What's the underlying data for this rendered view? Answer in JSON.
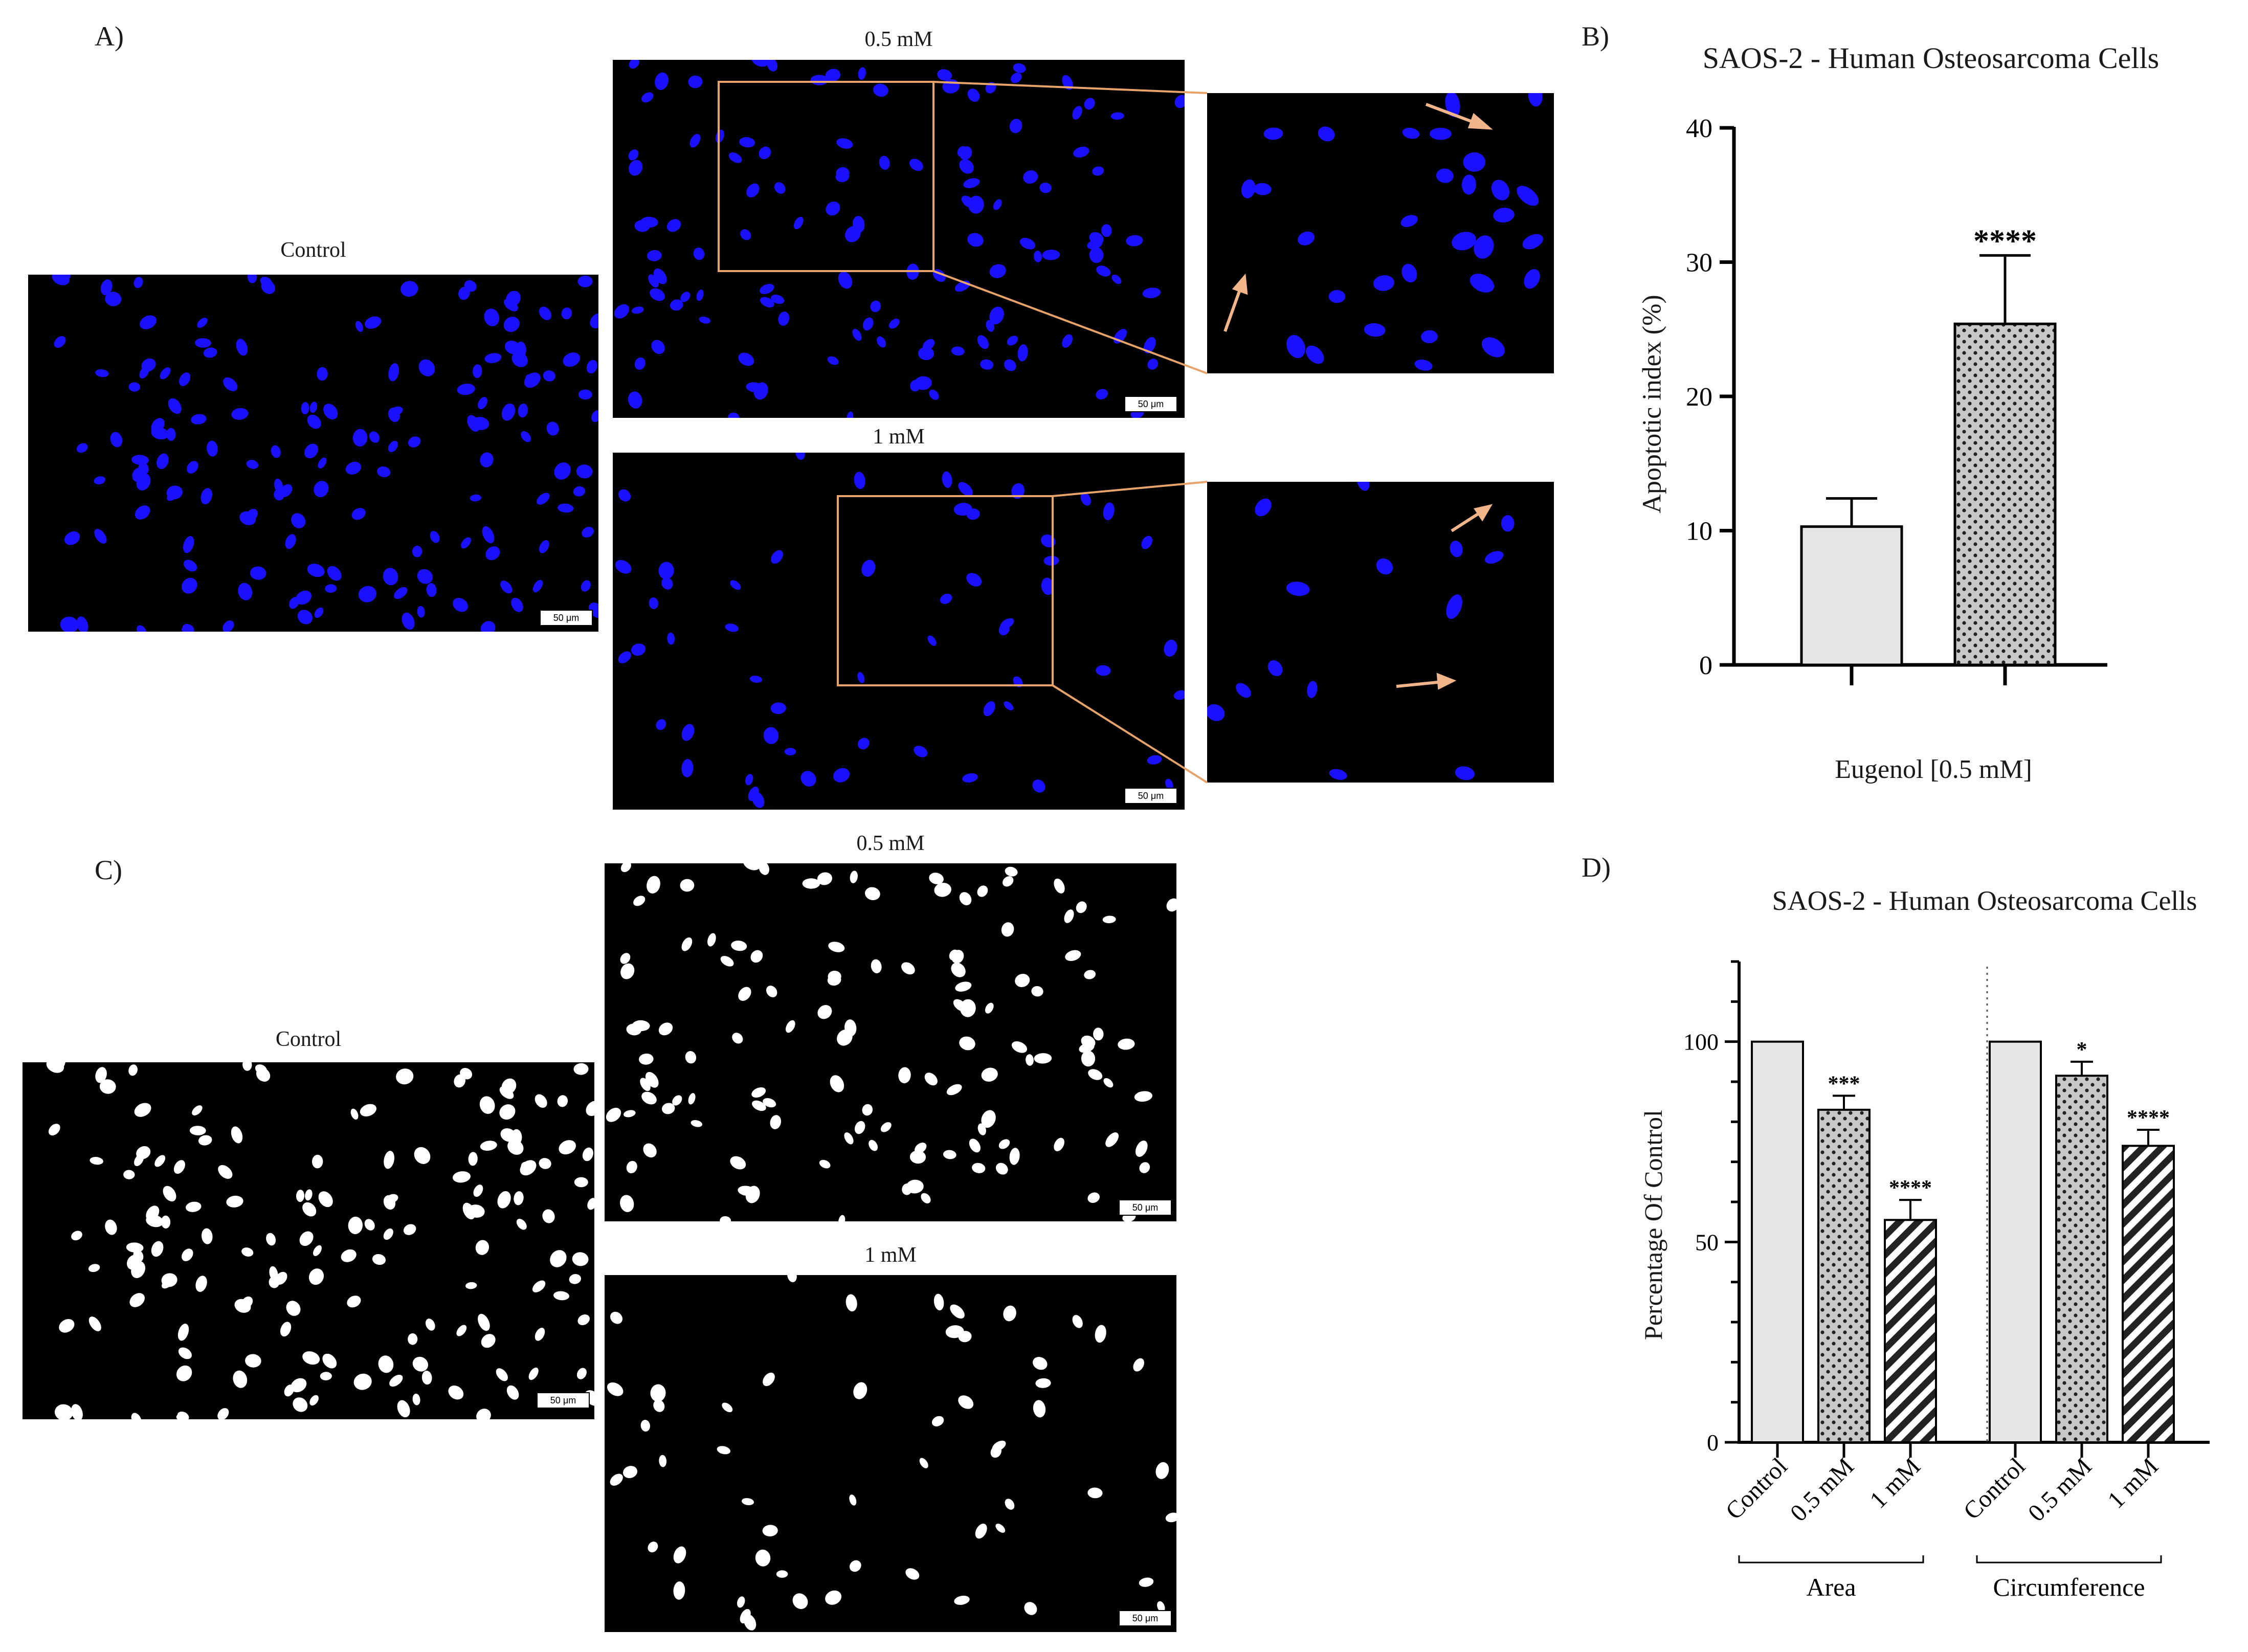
{
  "panels": {
    "A": {
      "letter": "A)",
      "control_label": "Control",
      "low_label": "0.5 mM",
      "high_label": "1 mM",
      "scale_bar": "50 μm"
    },
    "C": {
      "letter": "C)",
      "control_label": "Control",
      "low_label": "0.5 mM",
      "high_label": "1 mM",
      "scale_bar": "50 μm"
    },
    "B": {
      "letter": "B)"
    },
    "D": {
      "letter": "D)"
    }
  },
  "colors": {
    "nuclei_stain": "#1a10ff",
    "binary_nuclei": "#ffffff",
    "zoom_box": "#e8a36a",
    "arrow": "#f2b58a",
    "bar_control": "#e6e6e6",
    "bar_pattern": "#c8c8c8"
  },
  "chart_data": [
    {
      "type": "bar",
      "title": "SAOS-2 - Human Osteosarcoma Cells",
      "xlabel": "Eugenol [0.5 mM]",
      "ylabel": "Apoptotic index (%)",
      "ylim": [
        0,
        40
      ],
      "yticks": [
        0,
        10,
        20,
        30,
        40
      ],
      "categories": [
        "",
        ""
      ],
      "values": [
        10.3,
        25.4
      ],
      "errors": [
        2.1,
        5.1
      ],
      "patterns": [
        "solid",
        "dots"
      ],
      "significance": [
        "",
        "****"
      ],
      "grid": false
    },
    {
      "type": "bar",
      "title": "SAOS-2 - Human Osteosarcoma Cells",
      "ylabel": "Percentage Of Control",
      "ylim": [
        0,
        120
      ],
      "yticks": [
        0,
        50,
        100
      ],
      "categories": [
        "Control",
        "0.5 mM",
        "1 mM",
        "Control",
        "0.5 mM",
        "1 mM"
      ],
      "groups": [
        {
          "name": "Area",
          "values": [
            100,
            83,
            55.5
          ],
          "errors": [
            0,
            3.5,
            5
          ]
        },
        {
          "name": "Circumference",
          "values": [
            100,
            91.5,
            74
          ],
          "errors": [
            0,
            3.5,
            4
          ]
        }
      ],
      "patterns": [
        "solid",
        "dots",
        "stripes"
      ],
      "significance": [
        [
          "",
          "***",
          "****"
        ],
        [
          "",
          "*",
          "****"
        ]
      ],
      "grid": false
    }
  ]
}
